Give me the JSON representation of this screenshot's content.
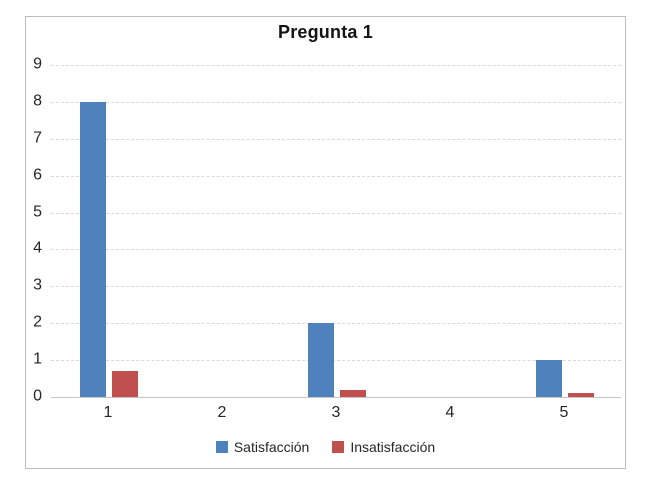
{
  "chart_data": {
    "type": "bar",
    "title": "Pregunta 1",
    "categories": [
      "1",
      "2",
      "3",
      "4",
      "5"
    ],
    "series": [
      {
        "name": "Satisfacción",
        "color": "#4F81BD",
        "values": [
          8,
          0,
          2,
          0,
          1
        ]
      },
      {
        "name": "Insatisfacción",
        "color": "#C0504D",
        "values": [
          0.7,
          0,
          0.2,
          0,
          0.1
        ]
      }
    ],
    "xlabel": "",
    "ylabel": "",
    "ylim": [
      0,
      9
    ],
    "ytick_step": 1,
    "grid": true,
    "gridline_color": "#d9d9d9",
    "axis_line_color": "#c6c6c6",
    "frame_border_color": "#bdbdbd",
    "legend_position": "bottom"
  }
}
